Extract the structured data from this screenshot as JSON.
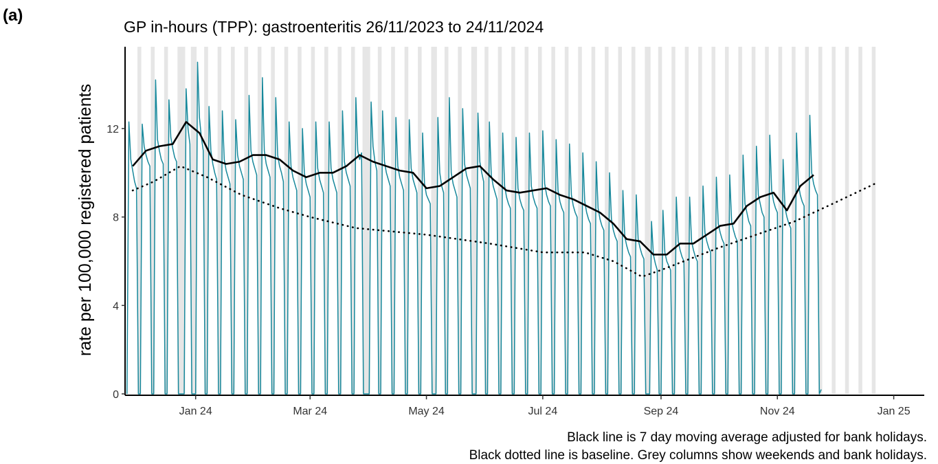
{
  "chart_data": {
    "type": "line",
    "panel_label": "(a)",
    "title": "GP in-hours (TPP): gastroenteritis 26/11/2023 to 24/11/2024",
    "ylabel": "rate per 100,000 registered patients",
    "notes": [
      "Black line is 7 day moving average adjusted for bank holidays.",
      "Black dotted line is baseline. Grey columns show weekends and bank holidays."
    ],
    "xlim": [
      -1,
      418
    ],
    "xticks": [
      {
        "value": 36,
        "label": "Jan 24"
      },
      {
        "value": 96,
        "label": "Mar 24"
      },
      {
        "value": 157,
        "label": "May 24"
      },
      {
        "value": 218,
        "label": "Jul 24"
      },
      {
        "value": 280,
        "label": "Sep 24"
      },
      {
        "value": 341,
        "label": "Nov 24"
      },
      {
        "value": 402,
        "label": "Jan 25"
      }
    ],
    "ylim": [
      0,
      15.7
    ],
    "yticks": [
      0,
      4,
      8,
      12
    ],
    "shade_color": "#e6e6e6",
    "shaded": [
      [
        5.5,
        7.5
      ],
      [
        12.5,
        14.5
      ],
      [
        19.5,
        21.5
      ],
      [
        26.5,
        30.5
      ],
      [
        33.5,
        36.5
      ],
      [
        40.5,
        42.5
      ],
      [
        47.5,
        49.5
      ],
      [
        54.5,
        56.5
      ],
      [
        61.5,
        63.5
      ],
      [
        68.5,
        70.5
      ],
      [
        75.5,
        77.5
      ],
      [
        82.5,
        84.5
      ],
      [
        89.5,
        91.5
      ],
      [
        96.5,
        98.5
      ],
      [
        103.5,
        105.5
      ],
      [
        110.5,
        112.5
      ],
      [
        117.5,
        119.5
      ],
      [
        123.5,
        127.5
      ],
      [
        131.5,
        133.5
      ],
      [
        138.5,
        140.5
      ],
      [
        145.5,
        147.5
      ],
      [
        152.5,
        154.5
      ],
      [
        159.5,
        162.5
      ],
      [
        166.5,
        168.5
      ],
      [
        173.5,
        175.5
      ],
      [
        180.5,
        183.5
      ],
      [
        187.5,
        189.5
      ],
      [
        194.5,
        196.5
      ],
      [
        201.5,
        203.5
      ],
      [
        208.5,
        210.5
      ],
      [
        215.5,
        217.5
      ],
      [
        222.5,
        224.5
      ],
      [
        229.5,
        231.5
      ],
      [
        236.5,
        238.5
      ],
      [
        243.5,
        245.5
      ],
      [
        250.5,
        252.5
      ],
      [
        257.5,
        259.5
      ],
      [
        264.5,
        266.5
      ],
      [
        271.5,
        274.5
      ],
      [
        278.5,
        280.5
      ],
      [
        285.5,
        287.5
      ],
      [
        292.5,
        294.5
      ],
      [
        299.5,
        301.5
      ],
      [
        306.5,
        308.5
      ],
      [
        313.5,
        315.5
      ],
      [
        320.5,
        322.5
      ],
      [
        327.5,
        329.5
      ],
      [
        334.5,
        336.5
      ],
      [
        341.5,
        343.5
      ],
      [
        348.5,
        350.5
      ],
      [
        355.5,
        357.5
      ],
      [
        362.5,
        364.5
      ],
      [
        369.5,
        371.5
      ],
      [
        376.5,
        378.5
      ],
      [
        383.5,
        385.5
      ],
      [
        390.5,
        392.5
      ]
    ],
    "series": [
      {
        "color": "#17889b",
        "width": 1.5,
        "style": "solid",
        "x": [
          0,
          1,
          2,
          3,
          4,
          5,
          6,
          7,
          8,
          9,
          10,
          11,
          12,
          13,
          14,
          15,
          16,
          17,
          18,
          19,
          20,
          21,
          22,
          23,
          24,
          25,
          26,
          27,
          28,
          29,
          30,
          31,
          32,
          33,
          34,
          35,
          36,
          37,
          38,
          39,
          40,
          41,
          42,
          43,
          44,
          45,
          46,
          47,
          48,
          49,
          50,
          51,
          52,
          53,
          54,
          55,
          56,
          57,
          58,
          59,
          60,
          61,
          62,
          63,
          64,
          65,
          66,
          67,
          68,
          69,
          70,
          71,
          72,
          73,
          74,
          75,
          76,
          77,
          78,
          79,
          80,
          81,
          82,
          83,
          84,
          85,
          86,
          87,
          88,
          89,
          90,
          91,
          92,
          93,
          94,
          95,
          96,
          97,
          98,
          99,
          100,
          101,
          102,
          103,
          104,
          105,
          106,
          107,
          108,
          109,
          110,
          111,
          112,
          113,
          114,
          115,
          116,
          117,
          118,
          119,
          120,
          121,
          122,
          123,
          124,
          125,
          126,
          127,
          128,
          129,
          130,
          131,
          132,
          133,
          134,
          135,
          136,
          137,
          138,
          139,
          140,
          141,
          142,
          143,
          144,
          145,
          146,
          147,
          148,
          149,
          150,
          151,
          152,
          153,
          154,
          155,
          156,
          157,
          158,
          159,
          160,
          161,
          162,
          163,
          164,
          165,
          166,
          167,
          168,
          169,
          170,
          171,
          172,
          173,
          174,
          175,
          176,
          177,
          178,
          179,
          180,
          181,
          182,
          183,
          184,
          185,
          186,
          187,
          188,
          189,
          190,
          191,
          192,
          193,
          194,
          195,
          196,
          197,
          198,
          199,
          200,
          201,
          202,
          203,
          204,
          205,
          206,
          207,
          208,
          209,
          210,
          211,
          212,
          213,
          214,
          215,
          216,
          217,
          218,
          219,
          220,
          221,
          222,
          223,
          224,
          225,
          226,
          227,
          228,
          229,
          230,
          231,
          232,
          233,
          234,
          235,
          236,
          237,
          238,
          239,
          240,
          241,
          242,
          243,
          244,
          245,
          246,
          247,
          248,
          249,
          250,
          251,
          252,
          253,
          254,
          255,
          256,
          257,
          258,
          259,
          260,
          261,
          262,
          263,
          264,
          265,
          266,
          267,
          268,
          269,
          270,
          271,
          272,
          273,
          274,
          275,
          276,
          277,
          278,
          279,
          280,
          281,
          282,
          283,
          284,
          285,
          286,
          287,
          288,
          289,
          290,
          291,
          292,
          293,
          294,
          295,
          296,
          297,
          298,
          299,
          300,
          301,
          302,
          303,
          304,
          305,
          306,
          307,
          308,
          309,
          310,
          311,
          312,
          313,
          314,
          315,
          316,
          317,
          318,
          319,
          320,
          321,
          322,
          323,
          324,
          325,
          326,
          327,
          328,
          329,
          330,
          331,
          332,
          333,
          334,
          335,
          336,
          337,
          338,
          339,
          340,
          341,
          342,
          343,
          344,
          345,
          346,
          347,
          348,
          349,
          350,
          351,
          352,
          353,
          354,
          355,
          356,
          357,
          358,
          359,
          360,
          361,
          362,
          363,
          364
        ],
        "values": [
          0,
          12.3,
          10.6,
          10.1,
          9.6,
          9.3,
          0,
          0,
          12.2,
          11.2,
          10.8,
          10.5,
          10.3,
          0,
          0,
          14.2,
          11.5,
          11.0,
          10.6,
          10.4,
          0,
          0,
          13.3,
          11.6,
          11.1,
          10.7,
          10.5,
          0,
          0,
          0,
          0,
          13.8,
          12.0,
          11.3,
          0,
          0,
          0,
          15.0,
          12.5,
          11.6,
          11.0,
          0,
          0,
          13.0,
          11.0,
          10.4,
          10.0,
          9.7,
          0,
          0,
          12.8,
          10.6,
          10.1,
          9.8,
          9.5,
          0,
          0,
          12.4,
          10.8,
          10.3,
          10.0,
          9.7,
          0,
          0,
          13.5,
          11.0,
          10.5,
          10.2,
          9.9,
          0,
          0,
          14.3,
          11.0,
          10.4,
          10.1,
          9.8,
          0,
          0,
          13.4,
          10.8,
          10.3,
          10.0,
          9.6,
          0,
          0,
          12.3,
          10.3,
          9.8,
          9.5,
          9.2,
          0,
          0,
          12.0,
          10.0,
          9.5,
          9.2,
          8.9,
          0,
          0,
          12.3,
          10.2,
          9.7,
          9.4,
          9.1,
          0,
          0,
          12.3,
          10.2,
          9.7,
          9.4,
          9.1,
          0,
          0,
          12.8,
          10.5,
          10.0,
          9.7,
          9.4,
          0,
          0,
          13.4,
          11.0,
          10.6,
          10.9,
          0,
          0,
          0,
          0,
          13.2,
          11.2,
          10.5,
          10.1,
          0,
          0,
          12.8,
          10.5,
          10.0,
          9.7,
          9.4,
          0,
          0,
          12.5,
          10.3,
          9.8,
          9.5,
          9.2,
          0,
          0,
          12.4,
          10.2,
          9.7,
          9.4,
          9.1,
          0,
          0,
          11.8,
          9.5,
          9.0,
          8.8,
          8.6,
          0,
          0,
          0,
          12.5,
          10.0,
          9.4,
          9.1,
          0,
          0,
          13.4,
          10.0,
          9.5,
          9.2,
          8.9,
          0,
          0,
          12.9,
          10.4,
          9.9,
          9.6,
          9.3,
          0,
          0,
          0,
          12.7,
          10.5,
          10.0,
          9.6,
          0,
          0,
          12.3,
          9.9,
          9.4,
          9.1,
          8.8,
          0,
          0,
          11.8,
          9.4,
          8.9,
          8.6,
          8.4,
          0,
          0,
          11.6,
          9.3,
          8.8,
          8.5,
          8.3,
          0,
          0,
          11.8,
          9.4,
          8.9,
          8.6,
          8.4,
          0,
          0,
          11.9,
          9.5,
          9.0,
          8.7,
          8.5,
          0,
          0,
          11.5,
          9.2,
          8.7,
          8.4,
          8.2,
          0,
          0,
          11.3,
          9.0,
          8.5,
          8.2,
          8.0,
          0,
          0,
          10.9,
          8.7,
          8.2,
          7.9,
          7.7,
          0,
          0,
          10.5,
          8.4,
          7.9,
          7.6,
          7.4,
          0,
          0,
          10.0,
          7.9,
          7.4,
          7.1,
          6.9,
          0,
          0,
          9.2,
          7.1,
          6.7,
          6.4,
          6.2,
          0,
          0,
          9.0,
          7.0,
          6.6,
          6.3,
          6.1,
          0,
          0,
          0,
          7.8,
          6.3,
          5.9,
          5.6,
          0,
          0,
          8.3,
          6.4,
          6.0,
          5.8,
          5.6,
          0,
          0,
          8.9,
          6.9,
          6.5,
          6.2,
          6.0,
          0,
          0,
          8.9,
          6.9,
          6.5,
          6.2,
          6.0,
          0,
          0,
          9.4,
          7.3,
          6.9,
          6.6,
          6.4,
          0,
          0,
          9.8,
          7.7,
          7.3,
          7.0,
          6.8,
          0,
          0,
          9.9,
          7.8,
          7.4,
          7.1,
          6.9,
          0,
          0,
          10.8,
          8.6,
          8.2,
          7.8,
          7.6,
          0,
          0,
          11.2,
          9.0,
          8.6,
          8.2,
          8.0,
          0,
          0,
          11.7,
          9.2,
          8.7,
          8.4,
          8.2,
          0,
          0,
          10.6,
          8.4,
          8.0,
          7.7,
          7.5,
          0,
          0,
          11.8,
          9.5,
          9.0,
          8.7,
          8.5,
          0,
          0,
          12.6,
          10.0,
          9.5,
          9.2,
          9.0,
          0,
          0.2
        ]
      },
      {
        "color": "#000000",
        "width": 2.6,
        "style": "solid",
        "x": [
          3,
          10,
          17,
          24,
          31,
          38,
          45,
          52,
          59,
          66,
          73,
          80,
          87,
          94,
          101,
          108,
          115,
          122,
          129,
          136,
          143,
          150,
          157,
          164,
          171,
          178,
          185,
          192,
          199,
          206,
          213,
          220,
          227,
          234,
          241,
          248,
          255,
          262,
          269,
          276,
          283,
          290,
          297,
          304,
          311,
          318,
          325,
          332,
          339,
          346,
          353,
          360
        ],
        "values": [
          10.3,
          11.0,
          11.2,
          11.3,
          12.3,
          11.8,
          10.6,
          10.4,
          10.5,
          10.8,
          10.8,
          10.6,
          10.1,
          9.8,
          10.0,
          10.0,
          10.3,
          10.8,
          10.5,
          10.3,
          10.1,
          10.0,
          9.3,
          9.4,
          9.8,
          10.2,
          10.3,
          9.7,
          9.2,
          9.1,
          9.2,
          9.3,
          9.0,
          8.8,
          8.5,
          8.2,
          7.7,
          7.0,
          6.9,
          6.3,
          6.3,
          6.8,
          6.8,
          7.2,
          7.6,
          7.7,
          8.5,
          8.9,
          9.1,
          8.3,
          9.4,
          9.9
        ]
      },
      {
        "color": "#000000",
        "width": 2.6,
        "style": "dotted",
        "x": [
          3,
          14,
          28,
          42,
          60,
          80,
          96,
          120,
          157,
          190,
          218,
          240,
          255,
          270,
          280,
          295,
          310,
          330,
          350,
          370,
          392
        ],
        "values": [
          9.2,
          9.6,
          10.3,
          9.8,
          9.0,
          8.4,
          8.0,
          7.5,
          7.2,
          6.8,
          6.4,
          6.4,
          6.0,
          5.3,
          5.6,
          6.1,
          6.6,
          7.2,
          7.8,
          8.6,
          9.5
        ]
      }
    ]
  }
}
